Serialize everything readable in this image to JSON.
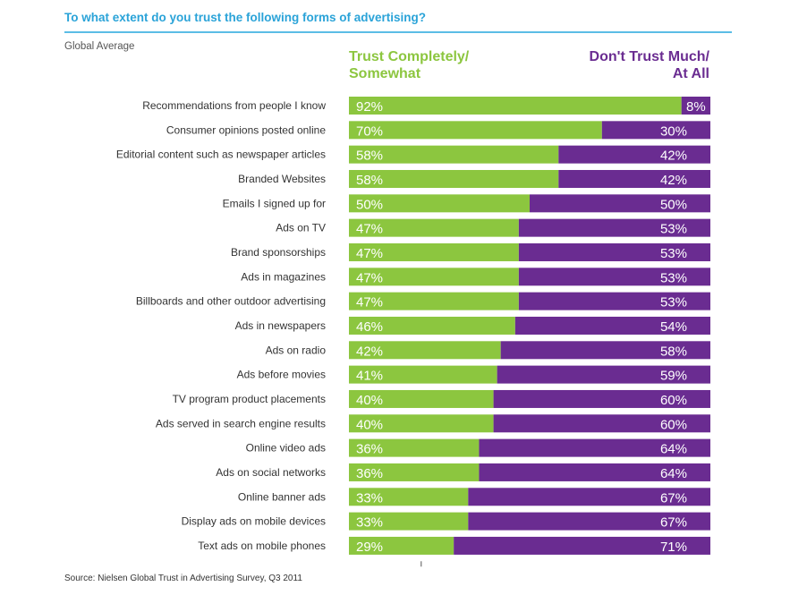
{
  "header": {
    "title": "To what extent do you trust the following forms of advertising?",
    "subtitle": "Global Average"
  },
  "legend": {
    "trust_line1": "Trust Completely/",
    "trust_line2": "Somewhat",
    "distrust_line1": "Don't Trust Much/",
    "distrust_line2": "At All"
  },
  "colors": {
    "trust": "#8cc63f",
    "distrust": "#6a2c91",
    "accent": "#2aa3d8"
  },
  "footer": {
    "source": "Source: Nielsen Global Trust in Advertising Survey, Q3 2011"
  },
  "chart_data": {
    "type": "bar",
    "orientation": "horizontal",
    "stacked": true,
    "title": "To what extent do you trust the following forms of advertising?",
    "subtitle": "Global Average",
    "xlim": [
      0,
      100
    ],
    "categories": [
      "Recommendations from people I know",
      "Consumer opinions posted online",
      "Editorial content such as newspaper articles",
      "Branded Websites",
      "Emails I signed up for",
      "Ads on TV",
      "Brand sponsorships",
      "Ads in magazines",
      "Billboards and other outdoor advertising",
      "Ads in newspapers",
      "Ads on radio",
      "Ads before movies",
      "TV program product placements",
      "Ads served in search engine results",
      "Online video ads",
      "Ads on social networks",
      "Online banner ads",
      "Display ads on mobile devices",
      "Text ads on mobile phones"
    ],
    "series": [
      {
        "name": "Trust Completely/ Somewhat",
        "values": [
          92,
          70,
          58,
          58,
          50,
          47,
          47,
          47,
          47,
          46,
          42,
          41,
          40,
          40,
          36,
          36,
          33,
          33,
          29
        ]
      },
      {
        "name": "Don't Trust Much/ At All",
        "values": [
          8,
          30,
          42,
          42,
          50,
          53,
          53,
          53,
          53,
          54,
          58,
          59,
          60,
          60,
          64,
          64,
          67,
          67,
          71
        ]
      }
    ],
    "legend": "top",
    "grid": false
  }
}
